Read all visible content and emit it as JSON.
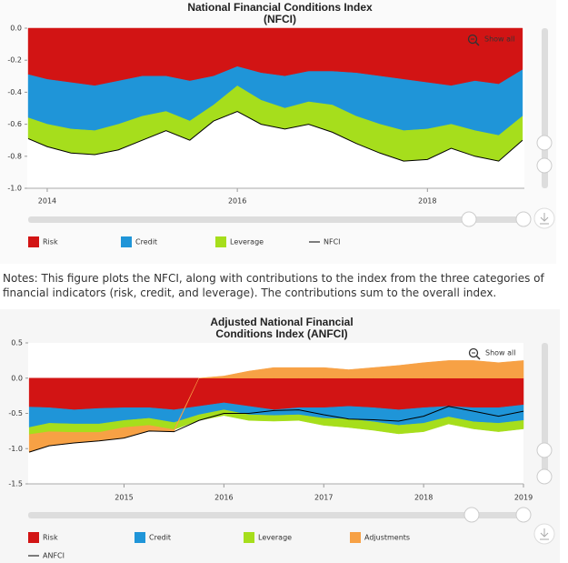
{
  "chart_data": [
    {
      "type": "area",
      "stacked": true,
      "title": "National Financial Conditions Index (NFCI)",
      "zoom_button": "Show all",
      "x": [
        2013.8,
        2014,
        2014.25,
        2014.5,
        2014.75,
        2015,
        2015.25,
        2015.5,
        2015.75,
        2016,
        2016.25,
        2016.5,
        2016.75,
        2017,
        2017.25,
        2017.5,
        2017.75,
        2018,
        2018.25,
        2018.5,
        2018.75,
        2019
      ],
      "xlim": [
        2013.79,
        2019.02
      ],
      "xticks": [
        2014,
        2016,
        2018
      ],
      "ylim": [
        -1,
        0
      ],
      "yticks": [
        {
          "value": 0,
          "label": "0.0"
        },
        -0.2,
        -0.4,
        -0.6,
        -0.8,
        {
          "value": -1,
          "label": "-1.0"
        }
      ],
      "grid": false,
      "series": [
        {
          "name": "Risk",
          "color": "#d21414",
          "values": [
            -0.29,
            -0.32,
            -0.34,
            -0.36,
            -0.33,
            -0.3,
            -0.3,
            -0.33,
            -0.3,
            -0.24,
            -0.28,
            -0.3,
            -0.27,
            -0.27,
            -0.28,
            -0.3,
            -0.32,
            -0.34,
            -0.36,
            -0.33,
            -0.35,
            -0.26
          ]
        },
        {
          "name": "Credit",
          "color": "#1f95d8",
          "values": [
            -0.27,
            -0.28,
            -0.29,
            -0.28,
            -0.27,
            -0.25,
            -0.22,
            -0.25,
            -0.18,
            -0.12,
            -0.17,
            -0.2,
            -0.19,
            -0.21,
            -0.27,
            -0.3,
            -0.32,
            -0.29,
            -0.24,
            -0.31,
            -0.32,
            -0.29
          ]
        },
        {
          "name": "Leverage",
          "color": "#a6de1c",
          "values": [
            -0.13,
            -0.14,
            -0.15,
            -0.15,
            -0.16,
            -0.15,
            -0.12,
            -0.12,
            -0.1,
            -0.16,
            -0.15,
            -0.13,
            -0.14,
            -0.17,
            -0.17,
            -0.18,
            -0.19,
            -0.19,
            -0.15,
            -0.16,
            -0.16,
            -0.15
          ]
        },
        {
          "name": "NFCI",
          "color": "#000000",
          "type": "line",
          "values": [
            -0.69,
            -0.74,
            -0.78,
            -0.79,
            -0.76,
            -0.7,
            -0.64,
            -0.7,
            -0.58,
            -0.52,
            -0.6,
            -0.63,
            -0.6,
            -0.65,
            -0.72,
            -0.78,
            -0.83,
            -0.82,
            -0.75,
            -0.8,
            -0.83,
            -0.7
          ]
        }
      ]
    },
    {
      "type": "area",
      "stacked": true,
      "title": "Adjusted National Financial Conditions Index (ANFCI)",
      "zoom_button": "Show all",
      "x": [
        2014.05,
        2014.25,
        2014.5,
        2014.75,
        2015,
        2015.25,
        2015.5,
        2015.75,
        2016,
        2016.25,
        2016.5,
        2016.75,
        2017,
        2017.25,
        2017.5,
        2017.75,
        2018,
        2018.25,
        2018.5,
        2018.75,
        2019
      ],
      "xlim": [
        2014.04,
        2019
      ],
      "xticks": [
        2015,
        2016,
        2017,
        2018,
        2019
      ],
      "ylim": [
        -1.5,
        0.5
      ],
      "yticks": [
        0.5,
        {
          "value": 0,
          "label": "0.0"
        },
        -0.5,
        {
          "value": -1,
          "label": "-1.0"
        },
        -1.5
      ],
      "grid": false,
      "series": [
        {
          "name": "Risk",
          "color": "#d21414",
          "values": [
            -0.41,
            -0.42,
            -0.45,
            -0.43,
            -0.42,
            -0.42,
            -0.45,
            -0.4,
            -0.35,
            -0.4,
            -0.45,
            -0.42,
            -0.42,
            -0.4,
            -0.42,
            -0.45,
            -0.42,
            -0.4,
            -0.42,
            -0.42,
            -0.38
          ]
        },
        {
          "name": "Credit",
          "color": "#1f95d8",
          "values": [
            -0.29,
            -0.22,
            -0.2,
            -0.22,
            -0.18,
            -0.15,
            -0.18,
            -0.12,
            -0.1,
            -0.12,
            -0.08,
            -0.1,
            -0.15,
            -0.18,
            -0.2,
            -0.22,
            -0.22,
            -0.15,
            -0.2,
            -0.22,
            -0.22
          ]
        },
        {
          "name": "Leverage",
          "color": "#a6de1c",
          "values": [
            -0.1,
            -0.12,
            -0.12,
            -0.12,
            -0.1,
            -0.1,
            -0.1,
            -0.08,
            -0.08,
            -0.08,
            -0.08,
            -0.08,
            -0.1,
            -0.12,
            -0.12,
            -0.12,
            -0.12,
            -0.1,
            -0.1,
            -0.12,
            -0.12
          ]
        },
        {
          "name": "Adjustments",
          "color": "#f7a145",
          "values": [
            -0.25,
            -0.2,
            -0.15,
            -0.12,
            -0.15,
            -0.08,
            -0.03,
            0,
            0.03,
            0.1,
            0.15,
            0.15,
            0.15,
            0.12,
            0.15,
            0.18,
            0.22,
            0.25,
            0.25,
            0.22,
            0.25
          ]
        },
        {
          "name": "ANFCI",
          "color": "#000000",
          "type": "line",
          "values": [
            -1.05,
            -0.96,
            -0.92,
            -0.89,
            -0.85,
            -0.75,
            -0.76,
            -0.6,
            -0.5,
            -0.5,
            -0.46,
            -0.45,
            -0.52,
            -0.58,
            -0.59,
            -0.61,
            -0.54,
            -0.4,
            -0.47,
            -0.54,
            -0.47
          ]
        }
      ]
    }
  ],
  "notes": "Notes: This figure plots the NFCI, along with contributions to the index from the three categories of financial indicators (risk, credit, and leverage). The contributions sum to the overall index."
}
